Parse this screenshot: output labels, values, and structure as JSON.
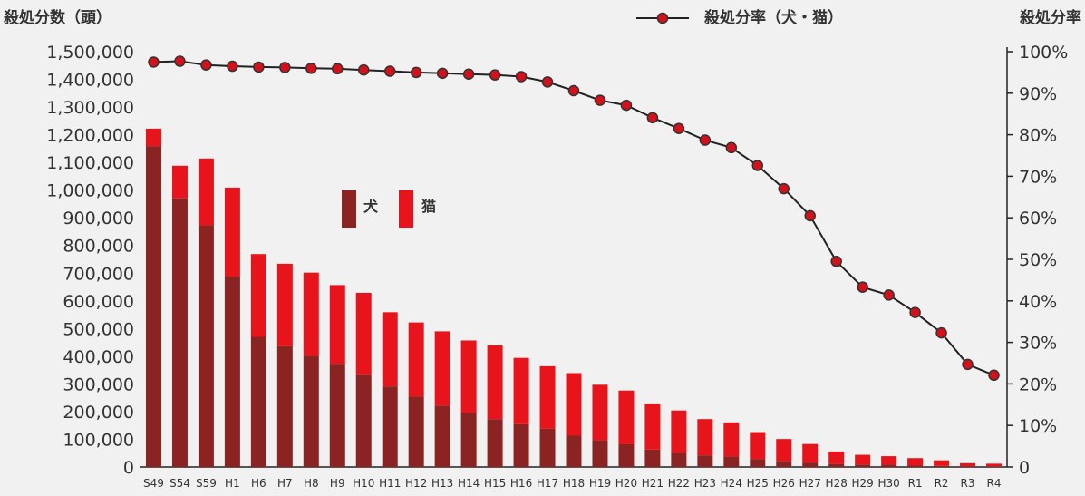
{
  "chart_data": {
    "type": "bar",
    "stacked": true,
    "categories": [
      "S49",
      "S54",
      "S59",
      "H1",
      "H6",
      "H7",
      "H8",
      "H9",
      "H10",
      "H11",
      "H12",
      "H13",
      "H14",
      "H15",
      "H16",
      "H17",
      "H18",
      "H19",
      "H20",
      "H21",
      "H22",
      "H23",
      "H24",
      "H25",
      "H26",
      "H27",
      "H28",
      "H29",
      "H30",
      "R1",
      "R2",
      "R3",
      "R4"
    ],
    "series": [
      {
        "name": "犬",
        "values": [
          1159000,
          970000,
          873000,
          687000,
          470000,
          436000,
          401000,
          373000,
          333000,
          291000,
          254000,
          222000,
          195000,
          173000,
          155000,
          138000,
          113000,
          97000,
          82000,
          63000,
          51000,
          42000,
          38000,
          29000,
          22000,
          16000,
          11000,
          9000,
          8000,
          5000,
          4000,
          2700,
          2400
        ],
        "color": "#8b2323"
      },
      {
        "name": "猫",
        "values": [
          63000,
          118000,
          241000,
          322000,
          299000,
          298000,
          301000,
          284000,
          296000,
          268000,
          268000,
          268000,
          262000,
          267000,
          239000,
          226000,
          226000,
          200000,
          194000,
          166000,
          153000,
          131000,
          123000,
          97000,
          79000,
          67000,
          45000,
          35000,
          31000,
          27000,
          20000,
          11000,
          9500
        ],
        "color": "#e8141c"
      },
      {
        "name": "殺処分率（犬・猫）",
        "axis": "right",
        "values": [
          97.5,
          97.7,
          96.8,
          96.5,
          96.3,
          96.2,
          96.0,
          95.9,
          95.6,
          95.3,
          95.0,
          94.8,
          94.6,
          94.4,
          94.0,
          92.7,
          90.6,
          88.3,
          87.1,
          84.1,
          81.5,
          78.7,
          76.9,
          72.6,
          67.0,
          60.5,
          49.5,
          43.3,
          41.4,
          37.2,
          32.3,
          24.7,
          22.1
        ],
        "color": "#d4111a"
      }
    ],
    "ylabel": "殺処分数（頭）",
    "y2label": "殺処分率",
    "ylim": [
      0,
      1500000
    ],
    "y2lim": [
      0,
      100
    ],
    "yticks": [
      "0",
      "100,000",
      "200,000",
      "300,000",
      "400,000",
      "500,000",
      "600,000",
      "700,000",
      "800,000",
      "900,000",
      "1,000,000",
      "1,100,000",
      "1,200,000",
      "1,300,000",
      "1,400,000",
      "1,500,000"
    ],
    "y2ticks": [
      "0",
      "10%",
      "20%",
      "30%",
      "40%",
      "50%",
      "60%",
      "70%",
      "80%",
      "90%",
      "100%"
    ],
    "legend_line": "殺処分率（犬・猫）",
    "legend_line_position": "top",
    "legend_bars_position": "center-left",
    "grid": false
  }
}
